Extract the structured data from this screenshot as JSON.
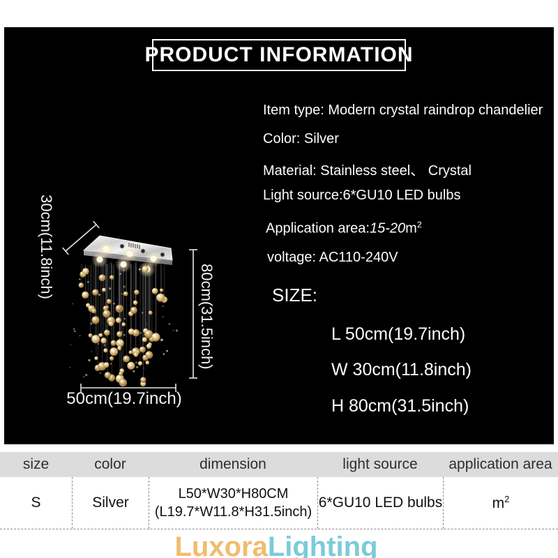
{
  "header": {
    "title": "PRODUCT INFORMATION"
  },
  "specs": {
    "item_type": "Item type: Modern crystal raindrop chandelier",
    "color": "Color: Silver",
    "material": "Material: Stainless steel、 Crystal",
    "light_source": "Light source:6*GU10 LED bulbs",
    "application_area": {
      "prefix": "Application area:",
      "value": "15-20",
      "unit": "m",
      "sup": "2"
    },
    "voltage": "voltage: AC110-240V"
  },
  "size": {
    "heading": "SIZE:",
    "items": [
      "L 50cm(19.7inch)",
      "W 30cm(11.8inch)",
      "H 80cm(31.5inch)"
    ]
  },
  "diagram": {
    "depth_label": "30cm(11.8inch)",
    "height_label": "80cm(31.5inch)",
    "length_label": "50cm(19.7inch)"
  },
  "table": {
    "headers": [
      "size",
      "color",
      "dimension",
      "light source",
      "application area"
    ],
    "row": {
      "size": "S",
      "color": "Silver",
      "dimension_line1": "L50*W30*H80CM",
      "dimension_line2": "(L19.7*W11.8*H31.5inch)",
      "light_source": "6*GU10 LED bulbs",
      "application_area": {
        "unit": "m",
        "sup": "2"
      }
    }
  },
  "logo": {
    "part1": "Luxora",
    "part2": "Lighting",
    "part1_color": "#f0bc6f",
    "part2_color": "#7ccbd9"
  }
}
